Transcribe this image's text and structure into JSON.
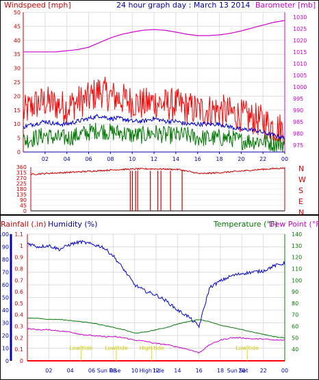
{
  "top_title": "24 hour graph day : March 13 2014",
  "top_left_label": "Windspeed [mph]",
  "top_right_label": "Barometer [mb]",
  "colors": {
    "wind_gust": "#ff0000",
    "wind_avg": "#0000cc",
    "wind_low": "#007700",
    "barometer": "#cc00cc",
    "wind_dir": "#cc0000",
    "humidity": "#0000cc",
    "temperature": "#007700",
    "dew_point": "#cc00cc",
    "rainfall": "#ff0000",
    "tide": "#dddd00",
    "axis_text_red": "#cc0000"
  },
  "hour_ticks": [
    "02",
    "04",
    "06",
    "08",
    "10",
    "12",
    "14",
    "16",
    "18",
    "20",
    "22",
    "00"
  ],
  "bottom_hour_ticks": [
    "02",
    "04",
    "06",
    "08",
    "10",
    "12",
    "14",
    "16",
    "18",
    "20",
    "22",
    "00"
  ],
  "bottom_overlay_labels": [
    {
      "text": "Sun Rise",
      "hour": 7.6
    },
    {
      "text": "High tide",
      "hour": 11.6
    },
    {
      "text": "Sun Set",
      "hour": 19.6
    }
  ],
  "tide_labels": [
    {
      "text": "Low tide",
      "hour": 5
    },
    {
      "text": "Low tide",
      "hour": 8.3
    },
    {
      "text": "High tide",
      "hour": 11.6
    },
    {
      "text": "Low tide",
      "hour": 20.5
    }
  ],
  "middle_labels": {
    "left_label": "Rainfall (.in)",
    "humidity_label": "Humidity (%)",
    "temp_label": "Temperature (°F)",
    "dew_label": "Dew Point (°F)"
  },
  "compass": [
    "N",
    "W",
    "S",
    "E",
    "N"
  ],
  "chart_data": [
    {
      "type": "line",
      "title": "24 hour graph day : March 13 2014",
      "xlabel": "",
      "ylabel": "Windspeed [mph]",
      "y2label": "Barometer [mb]",
      "ylim": [
        0,
        50
      ],
      "y2lim": [
        972,
        1032
      ],
      "yticks": [
        0,
        5,
        10,
        15,
        20,
        25,
        30,
        35,
        40,
        45,
        50
      ],
      "y2ticks": [
        975,
        980,
        985,
        990,
        995,
        1000,
        1005,
        1010,
        1015,
        1020,
        1025,
        1030
      ],
      "x_hours": [
        0,
        1,
        2,
        3,
        4,
        5,
        6,
        7,
        8,
        9,
        10,
        11,
        12,
        13,
        14,
        15,
        16,
        17,
        18,
        19,
        20,
        21,
        22,
        23,
        24
      ],
      "series": [
        {
          "name": "Windspeed",
          "values": [
            14,
            17,
            18,
            17,
            16,
            18,
            19,
            22,
            20,
            19,
            18,
            17,
            18,
            17,
            17,
            16,
            15,
            15,
            15,
            14,
            13,
            12,
            11,
            9,
            8
          ]
        },
        {
          "name": "Wind avg",
          "values": [
            9,
            10,
            11,
            10,
            10,
            11,
            12,
            13,
            12,
            12,
            11,
            11,
            12,
            11,
            11,
            10,
            10,
            10,
            10,
            9,
            8,
            8,
            7,
            6,
            5
          ]
        },
        {
          "name": "Wind low",
          "values": [
            4,
            5,
            6,
            5,
            5,
            6,
            7,
            8,
            7,
            7,
            6,
            6,
            7,
            6,
            6,
            6,
            5,
            5,
            5,
            5,
            4,
            4,
            4,
            3,
            3
          ]
        },
        {
          "name": "Barometer",
          "values": [
            1015,
            1015,
            1015,
            1015,
            1015.5,
            1016,
            1017,
            1019,
            1021,
            1022.5,
            1023.5,
            1024.3,
            1024.6,
            1024.3,
            1023.5,
            1022.6,
            1022,
            1022,
            1022.3,
            1023,
            1024,
            1025.3,
            1026.5,
            1027.7,
            1028.5
          ]
        }
      ]
    },
    {
      "type": "line",
      "title": "",
      "ylabel": "",
      "ylim": [
        0,
        360
      ],
      "yticks": [
        0,
        45,
        90,
        135,
        180,
        225,
        270,
        315,
        360
      ],
      "x_hours": [
        0,
        2,
        4,
        6,
        8,
        10,
        12,
        14,
        16,
        18,
        20,
        22,
        24
      ],
      "series": [
        {
          "name": "Wind direction",
          "values": [
            300,
            310,
            318,
            328,
            338,
            345,
            345,
            340,
            305,
            315,
            328,
            342,
            352
          ]
        }
      ],
      "dips_at_hours": [
        9.4,
        9.6,
        9.9,
        10.1,
        11.3,
        12.0,
        12.3,
        13.2,
        14.3
      ]
    },
    {
      "type": "line",
      "title": "",
      "ylabel": "Rainfall (.in)",
      "y2label": "Temperature (°F)",
      "ylim": [
        0,
        100
      ],
      "y2lim": [
        30,
        140
      ],
      "rain_ylim": [
        0,
        1.1
      ],
      "yticks": [
        0,
        10,
        20,
        30,
        40,
        50,
        60,
        70,
        80,
        90,
        100
      ],
      "rain_ticks": [
        0,
        0.1,
        0.2,
        0.3,
        0.4,
        0.5,
        0.6,
        0.7,
        0.8,
        0.9,
        1,
        1.1
      ],
      "y2ticks": [
        40,
        50,
        60,
        70,
        80,
        90,
        100,
        110,
        120,
        130,
        140
      ],
      "x_hours": [
        0,
        1,
        2,
        3,
        4,
        5,
        6,
        7,
        8,
        9,
        10,
        11,
        12,
        13,
        14,
        15,
        16,
        17,
        18,
        19,
        20,
        21,
        22,
        23,
        24
      ],
      "series": [
        {
          "name": "Humidity",
          "values": [
            93,
            90,
            91,
            88,
            92,
            94,
            92,
            90,
            83,
            72,
            60,
            55,
            52,
            47,
            40,
            35,
            27,
            58,
            63,
            67,
            69,
            70,
            71,
            75,
            77
          ]
        },
        {
          "name": "Temperature",
          "values": [
            67,
            67,
            66,
            66,
            65,
            64,
            63,
            61,
            59,
            57,
            54,
            55,
            57,
            59,
            62,
            64,
            66,
            64,
            61,
            59,
            57,
            55,
            53,
            51,
            50
          ]
        },
        {
          "name": "Dew Point",
          "values": [
            58,
            57,
            57,
            56,
            55,
            53,
            52,
            51,
            51,
            50,
            48,
            47,
            45,
            44,
            42,
            40,
            37,
            44,
            48,
            50,
            50,
            49,
            49,
            48,
            48
          ]
        },
        {
          "name": "Rainfall",
          "values": [
            0,
            0,
            0,
            0,
            0,
            0,
            0,
            0,
            0,
            0,
            0,
            0,
            0,
            0,
            0,
            0,
            0,
            0,
            0,
            0,
            0,
            0,
            0,
            0,
            0
          ]
        }
      ]
    }
  ]
}
